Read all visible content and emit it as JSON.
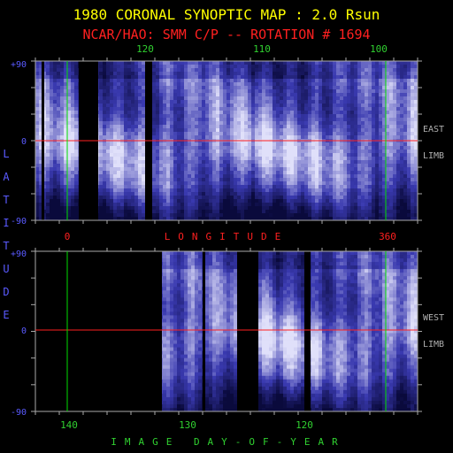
{
  "title": "1980 CORONAL SYNOPTIC MAP : 2.0 Rsun",
  "subtitle": "NCAR/HAO: SMM C/P -- ROTATION # 1694",
  "colors": {
    "title": "#ffff00",
    "subtitle": "#ff2020",
    "axis_label": "#5a5aff",
    "tick_label_green": "#30d030",
    "tick_label_red": "#ff2020",
    "frame": "#aaaaaa",
    "equator_line": "#ff2020",
    "reference_line": "#00dd00",
    "map_dark": "#0a0a2a",
    "map_mid": "#3a3ab0",
    "map_bright": "#dcdcf8",
    "side_label": "#b0b0b0"
  },
  "chart_data": [
    {
      "type": "heatmap",
      "panel": "east-limb",
      "side_label": [
        "EAST",
        "LIMB"
      ],
      "top_axis": {
        "ticks": [
          {
            "value": 120,
            "label": "120"
          },
          {
            "value": 110,
            "label": "110"
          },
          {
            "value": 100,
            "label": "100"
          }
        ]
      },
      "bottom_axis": {
        "label": "LONGITUDE",
        "ticks": [
          {
            "value": 0,
            "label": "0"
          },
          {
            "value": 360,
            "label": "360"
          }
        ]
      },
      "left_axis": {
        "ticks": [
          {
            "value": 90,
            "label": "+90"
          },
          {
            "value": 0,
            "label": "0"
          },
          {
            "value": -90,
            "label": "-90"
          }
        ]
      },
      "green_lines_at_longitude": [
        0,
        360
      ],
      "equator": 0,
      "data_gaps": [
        "near longitude 45",
        "near longitude 195",
        "near longitude 205"
      ]
    },
    {
      "type": "heatmap",
      "panel": "west-limb",
      "side_label": [
        "WEST",
        "LIMB"
      ],
      "bottom_axis": {
        "label": "IMAGE DAY-OF-YEAR",
        "ticks": [
          {
            "value": 140,
            "label": "140"
          },
          {
            "value": 130,
            "label": "130"
          },
          {
            "value": 120,
            "label": "120"
          }
        ]
      },
      "left_axis": {
        "ticks": [
          {
            "value": 90,
            "label": "+90"
          },
          {
            "value": 0,
            "label": "0"
          },
          {
            "value": -90,
            "label": "-90"
          }
        ]
      },
      "green_lines_at_longitude": [
        0,
        360
      ],
      "equator": 0,
      "data_gaps": [
        "longitude 0 to 140",
        "near longitude 165",
        "near longitude 220",
        "near longitude 278"
      ]
    }
  ],
  "vertical_label": "LATITUDE"
}
